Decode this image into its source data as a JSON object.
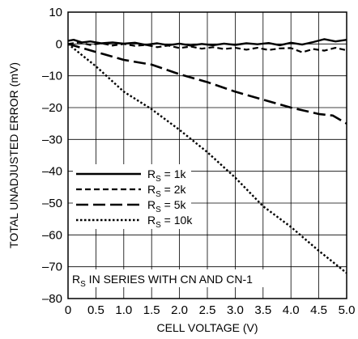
{
  "chart_data": {
    "type": "line",
    "xlabel": "CELL VOLTAGE (V)",
    "ylabel": "TOTAL UNADJUSTED ERROR (mV)",
    "xlim": [
      0,
      5
    ],
    "ylim": [
      -80,
      10
    ],
    "x_ticks": [
      "0",
      "0.5",
      "1.0",
      "1.5",
      "2.0",
      "2.5",
      "3.0",
      "3.5",
      "4.0",
      "4.5",
      "5.0"
    ],
    "y_ticks": [
      "10",
      "0",
      "–10",
      "–20",
      "–30",
      "–40",
      "–50",
      "–60",
      "–70",
      "–80"
    ],
    "grid": true,
    "legend_placement": "left-center",
    "annotation": "IN SERIES WITH CN AND CN-1",
    "series": [
      {
        "name": "= 1k",
        "style": "solid",
        "x": [
          0,
          0.1,
          0.25,
          0.4,
          0.6,
          0.8,
          1.0,
          1.2,
          1.4,
          1.6,
          1.8,
          2.0,
          2.2,
          2.4,
          2.6,
          2.8,
          3.0,
          3.2,
          3.4,
          3.6,
          3.8,
          4.0,
          4.2,
          4.4,
          4.6,
          4.8,
          5.0
        ],
        "y": [
          1,
          1.3,
          0.5,
          0.8,
          0.2,
          0.5,
          0.1,
          0.4,
          -0.3,
          0.2,
          -0.4,
          0.1,
          -0.5,
          0,
          -0.4,
          0.1,
          -0.3,
          0.2,
          -0.1,
          0.3,
          -0.4,
          0.4,
          -0.2,
          0.6,
          1.5,
          0.8,
          1.3
        ]
      },
      {
        "name": "= 2k",
        "style": "dashed",
        "x": [
          0,
          0.2,
          0.4,
          0.6,
          0.8,
          1.0,
          1.2,
          1.4,
          1.6,
          1.8,
          2.0,
          2.2,
          2.4,
          2.6,
          2.8,
          3.0,
          3.2,
          3.4,
          3.6,
          3.8,
          4.0,
          4.2,
          4.4,
          4.6,
          4.8,
          5.0
        ],
        "y": [
          0,
          0.5,
          -0.3,
          0.2,
          -0.5,
          0,
          -0.6,
          -0.3,
          -1,
          -0.5,
          -1.3,
          -0.8,
          -1.5,
          -1,
          -1.6,
          -1.2,
          -1.8,
          -1.2,
          -1.9,
          -1.4,
          -1.3,
          -2.6,
          -1.6,
          -2.1,
          -1.2,
          -2
        ]
      },
      {
        "name": "= 5k",
        "style": "longdash",
        "x": [
          0,
          0.5,
          1.0,
          1.5,
          2.0,
          2.5,
          3.0,
          3.5,
          4.0,
          4.5,
          4.75,
          5.0
        ],
        "y": [
          0,
          -2.5,
          -5,
          -6.5,
          -9.5,
          -12,
          -15,
          -17.5,
          -20,
          -22,
          -22.5,
          -25
        ]
      },
      {
        "name": "= 10k",
        "style": "dotted",
        "x": [
          0,
          0.5,
          1.0,
          1.5,
          2.0,
          2.5,
          3.0,
          3.5,
          4.0,
          4.5,
          5.0
        ],
        "y": [
          0,
          -7,
          -15,
          -20.5,
          -27,
          -34,
          -42,
          -51,
          -57.5,
          -65,
          -72
        ]
      }
    ]
  }
}
